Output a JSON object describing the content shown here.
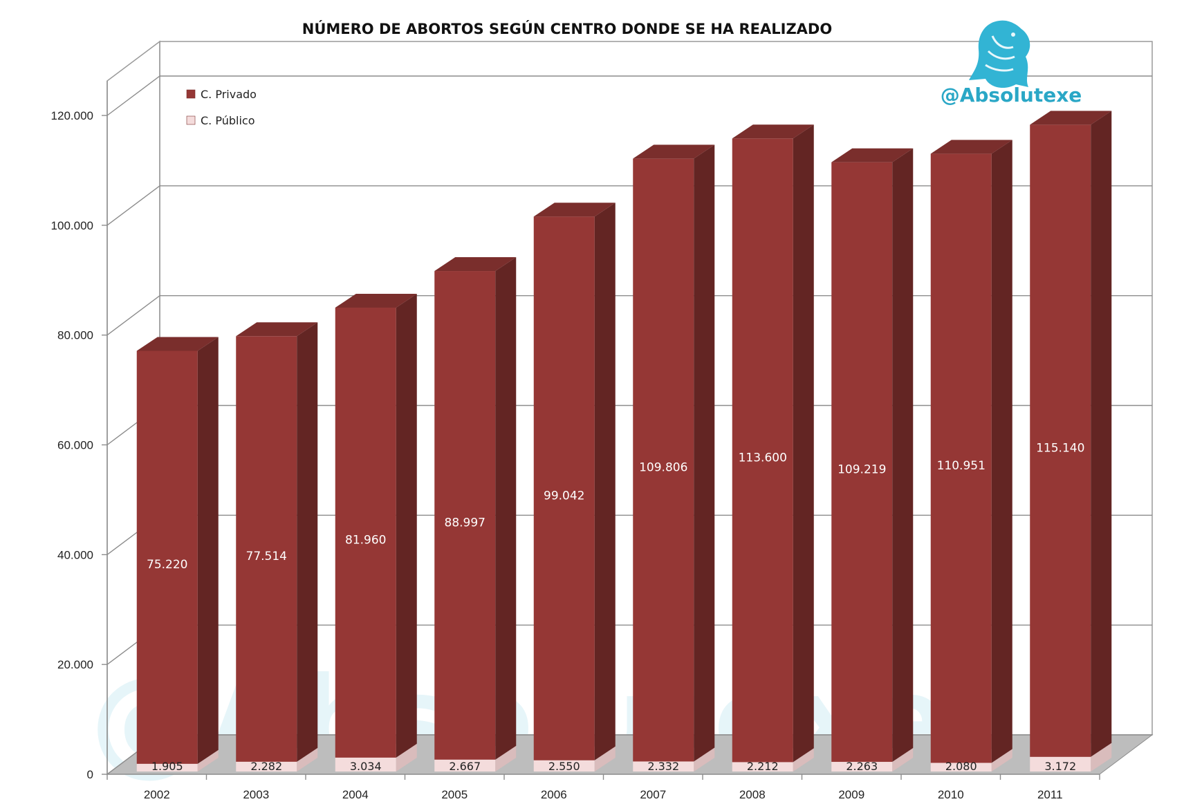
{
  "chart_data": {
    "type": "bar",
    "title": "NÚMERO DE ABORTOS SEGÚN CENTRO DONDE SE HA REALIZADO",
    "categories": [
      "2002",
      "2003",
      "2004",
      "2005",
      "2006",
      "2007",
      "2008",
      "2009",
      "2010",
      "2011"
    ],
    "series": [
      {
        "name": "C. Privado",
        "values": [
          75220,
          77514,
          81960,
          88997,
          99042,
          109806,
          113600,
          109219,
          110951,
          115140
        ],
        "labels": [
          "75.220",
          "77.514",
          "81.960",
          "88.997",
          "99.042",
          "109.806",
          "113.600",
          "109.219",
          "110.951",
          "115.140"
        ],
        "color": "#953735"
      },
      {
        "name": "C. Público",
        "values": [
          1905,
          2282,
          3034,
          2667,
          2550,
          2332,
          2212,
          2263,
          2080,
          3172
        ],
        "labels": [
          "1.905",
          "2.282",
          "3.034",
          "2.667",
          "2.550",
          "2.332",
          "2.212",
          "2.263",
          "2.080",
          "3.172"
        ],
        "color": "#f4dcdc"
      }
    ],
    "stacked": true,
    "ylim": [
      0,
      120000
    ],
    "yticks": [
      0,
      20000,
      40000,
      60000,
      80000,
      100000,
      120000
    ],
    "ytick_labels": [
      "0",
      "20.000",
      "40.000",
      "60.000",
      "80.000",
      "100.000",
      "120.000"
    ],
    "grid": true,
    "legend_position": "top-left",
    "style": "3d-column"
  },
  "branding": {
    "handle": "@Absolutexe",
    "watermark_text": "@Absolutexe",
    "logo_icon": "griffin-logo-icon",
    "brand_color": "#2aa7c6"
  }
}
